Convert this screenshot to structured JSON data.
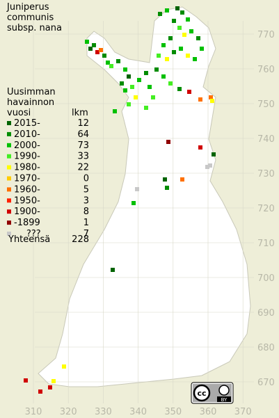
{
  "title": [
    "Juniperus",
    "communis",
    "subsp. nana"
  ],
  "legend": {
    "header": [
      "Uusimman",
      "havainnon",
      "vuosi"
    ],
    "count_header": "lkm",
    "entries": [
      {
        "label": "2015-",
        "count": 12,
        "color": "#006400"
      },
      {
        "label": "2010-",
        "count": 64,
        "color": "#008c00"
      },
      {
        "label": "2000-",
        "count": 73,
        "color": "#00c000"
      },
      {
        "label": "1990-",
        "count": 33,
        "color": "#44ee22"
      },
      {
        "label": "1980-",
        "count": 22,
        "color": "#ffff00"
      },
      {
        "label": "1970-",
        "count": 0,
        "color": "#ffcc00"
      },
      {
        "label": "1960-",
        "count": 5,
        "color": "#ff7000"
      },
      {
        "label": "1950-",
        "count": 3,
        "color": "#ff2000"
      },
      {
        "label": "1900-",
        "count": 8,
        "color": "#d00000"
      },
      {
        "label": "-1899",
        "count": 1,
        "color": "#900000"
      },
      {
        "label": "???",
        "count": 7,
        "color": "#c8c8c8"
      }
    ],
    "total_label": "Yhteensä",
    "total": 228
  },
  "x_grid": [
    310,
    320,
    330,
    340,
    350,
    360,
    370
  ],
  "y_grid": [
    670,
    680,
    690,
    700,
    710,
    720,
    730,
    740,
    750,
    760,
    770
  ],
  "badge": {
    "cc": "cc",
    "by": "BY"
  }
}
